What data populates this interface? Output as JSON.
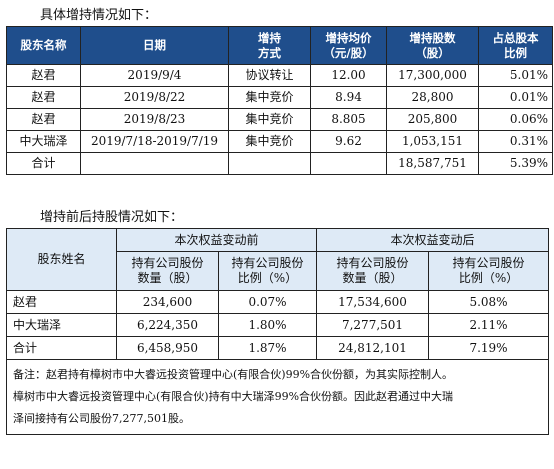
{
  "section1": {
    "heading": "具体增持情况如下：",
    "headers": [
      "股东名称",
      "日期",
      "增持\n方式",
      "增持均价\n（元/股）",
      "增持股数\n（股）",
      "占总股本\n比例"
    ],
    "rows": [
      [
        "赵君",
        "2019/9/4",
        "协议转让",
        "12.00",
        "17,300,000",
        "5.01%"
      ],
      [
        "赵君",
        "2019/8/22",
        "集中竞价",
        "8.94",
        "28,800",
        "0.01%"
      ],
      [
        "赵君",
        "2019/8/23",
        "集中竞价",
        "8.805",
        "205,800",
        "0.06%"
      ],
      [
        "中大瑞泽",
        "2019/7/18-2019/7/19",
        "集中竞价",
        "9.62",
        "1,053,151",
        "0.31%"
      ],
      [
        "合计",
        "",
        "",
        "",
        "18,587,751",
        "5.39%"
      ]
    ]
  },
  "section2": {
    "heading": "增持前后持股情况如下：",
    "col_name": "股东姓名",
    "group_before": "本次权益变动前",
    "group_after": "本次权益变动后",
    "sub_headers": [
      "持有公司股份\n数量（股）",
      "持有公司股份\n比例（%）",
      "持有公司股份\n数量（股）",
      "持有公司股份\n比例（%）"
    ],
    "rows": [
      [
        "赵君",
        "234,600",
        "0.07%",
        "17,534,600",
        "5.08%"
      ],
      [
        "中大瑞泽",
        "6,224,350",
        "1.80%",
        "7,277,501",
        "2.11%"
      ],
      [
        "合计",
        "6,458,950",
        "1.87%",
        "24,812,101",
        "7.19%"
      ]
    ],
    "note_lines": [
      "备注：赵君持有樟树市中大睿远投资管理中心(有限合伙)99%合伙份额，为其实际控制人。",
      "樟树市中大睿远投资管理中心(有限合伙)持有中大瑞泽99%合伙份额。因此赵君通过中大瑞",
      "泽间接持有公司股份7,277,501股。"
    ]
  }
}
